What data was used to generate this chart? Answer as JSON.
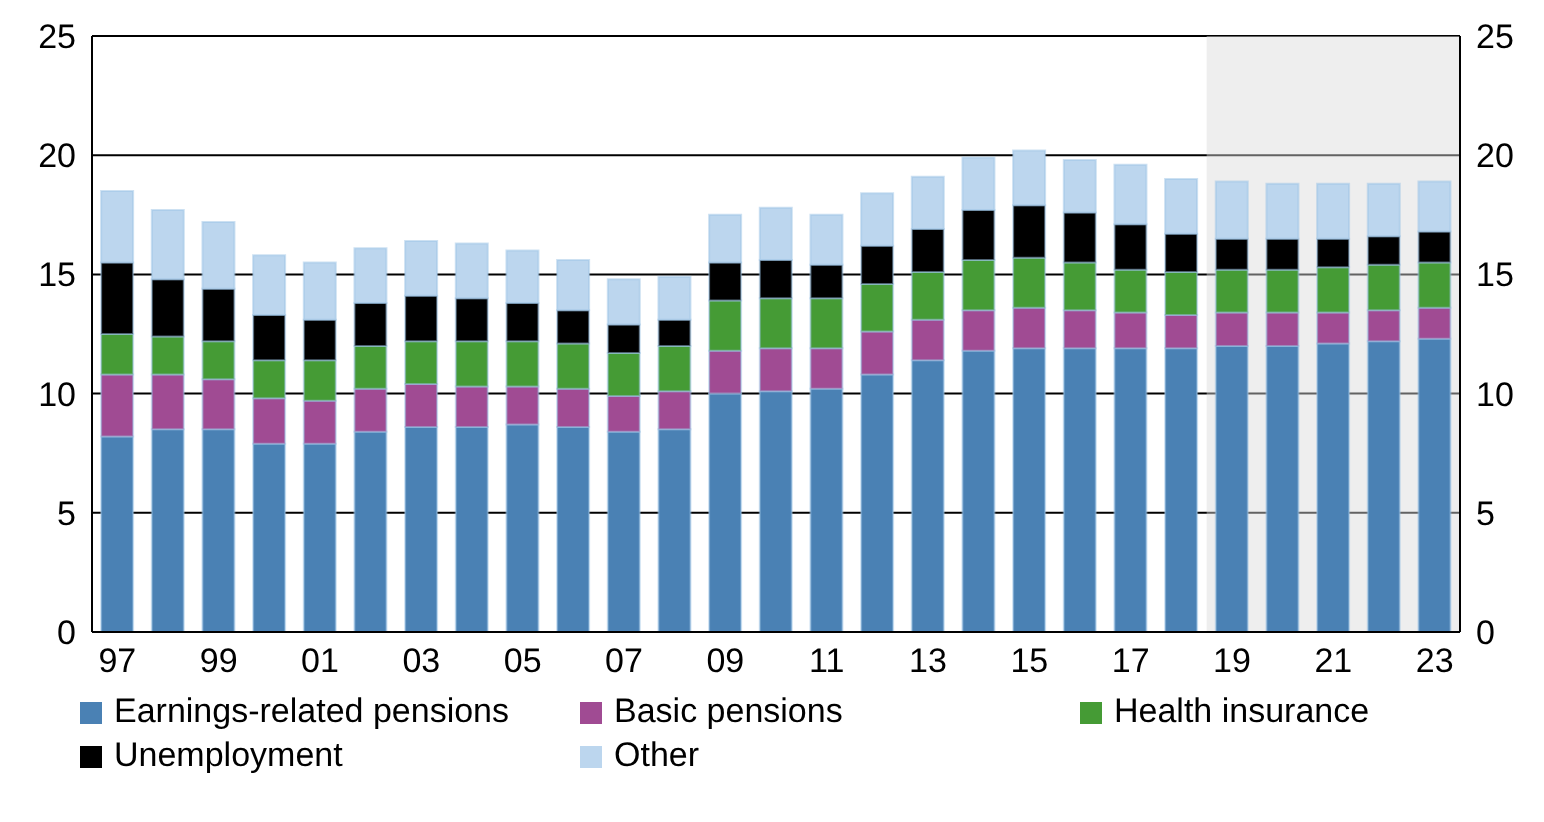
{
  "chart_data": {
    "type": "bar",
    "stacked": true,
    "categories": [
      "97",
      null,
      "99",
      null,
      "01",
      null,
      "03",
      null,
      "05",
      null,
      "07",
      null,
      "09",
      null,
      "11",
      null,
      "13",
      null,
      "15",
      null,
      "17",
      null,
      "19",
      null,
      "21",
      null,
      "23"
    ],
    "series": [
      {
        "name": "Earnings-related pensions",
        "color": "#4a81b4",
        "values": [
          8.2,
          8.5,
          8.5,
          7.9,
          7.9,
          8.4,
          8.6,
          8.6,
          8.7,
          8.6,
          8.4,
          8.5,
          10.0,
          10.1,
          10.2,
          10.8,
          11.4,
          11.8,
          11.9,
          11.9,
          11.9,
          11.9,
          12.0,
          12.0,
          12.1,
          12.2,
          12.3
        ]
      },
      {
        "name": "Basic pensions",
        "color": "#a04b93",
        "values": [
          2.6,
          2.3,
          2.1,
          1.9,
          1.8,
          1.8,
          1.8,
          1.7,
          1.6,
          1.6,
          1.5,
          1.6,
          1.8,
          1.8,
          1.7,
          1.8,
          1.7,
          1.7,
          1.7,
          1.6,
          1.5,
          1.4,
          1.4,
          1.4,
          1.3,
          1.3,
          1.3
        ]
      },
      {
        "name": "Health insurance",
        "color": "#459b35",
        "values": [
          1.7,
          1.6,
          1.6,
          1.6,
          1.7,
          1.8,
          1.8,
          1.9,
          1.9,
          1.9,
          1.8,
          1.9,
          2.1,
          2.1,
          2.1,
          2.0,
          2.0,
          2.1,
          2.1,
          2.0,
          1.8,
          1.8,
          1.8,
          1.8,
          1.9,
          1.9,
          1.9
        ]
      },
      {
        "name": "Unemployment",
        "color": "#000000",
        "values": [
          3.0,
          2.4,
          2.2,
          1.9,
          1.7,
          1.8,
          1.9,
          1.8,
          1.6,
          1.4,
          1.2,
          1.1,
          1.6,
          1.6,
          1.4,
          1.6,
          1.8,
          2.1,
          2.2,
          2.1,
          1.9,
          1.6,
          1.3,
          1.3,
          1.2,
          1.2,
          1.3
        ]
      },
      {
        "name": "Other",
        "color": "#bcd6ee",
        "values": [
          3.0,
          2.9,
          2.8,
          2.5,
          2.4,
          2.3,
          2.3,
          2.3,
          2.2,
          2.1,
          1.9,
          1.8,
          2.0,
          2.2,
          2.1,
          2.2,
          2.2,
          2.2,
          2.3,
          2.2,
          2.5,
          2.3,
          2.4,
          2.3,
          2.3,
          2.2,
          2.1
        ]
      }
    ],
    "ylim": [
      0,
      25
    ],
    "yticks": [
      0,
      5,
      10,
      15,
      20,
      25
    ],
    "y2lim": [
      0,
      25
    ],
    "y2ticks": [
      0,
      5,
      10,
      15,
      20,
      25
    ],
    "grid": "y",
    "legend": "bottom",
    "bands": [
      {
        "axis": "x",
        "from": "19",
        "to": "23",
        "color": "#d9d9d9"
      }
    ]
  }
}
